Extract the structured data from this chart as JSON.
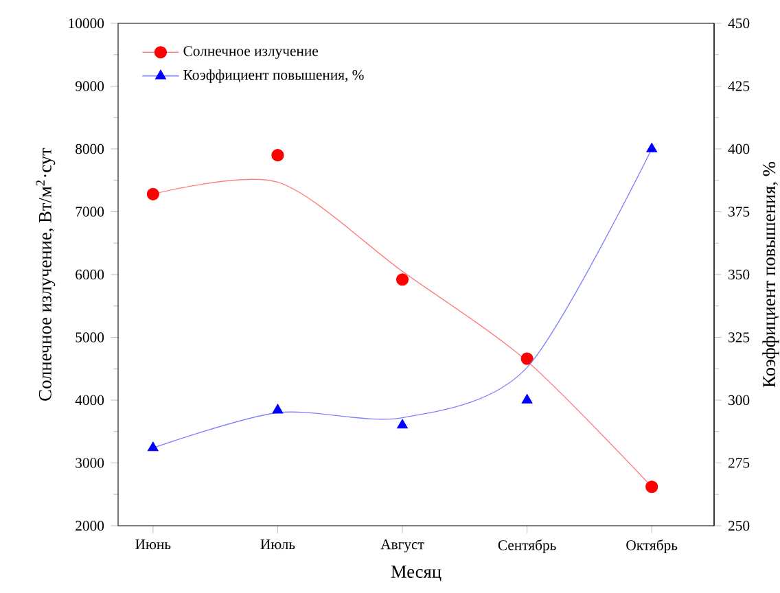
{
  "chart_data": {
    "type": "scatter",
    "xlabel": "Месяц",
    "ylabel": "Солнечное излучение, Вт/м$^{2}$·сут",
    "y2label": "Коэффициент повышения, %",
    "categories": [
      "Июнь",
      "Июль",
      "Август",
      "Сентябрь",
      "Октябрь"
    ],
    "ylim": [
      2000,
      10000
    ],
    "yticks": [
      2000,
      3000,
      4000,
      5000,
      6000,
      7000,
      8000,
      9000,
      10000
    ],
    "y2lim": [
      250,
      450
    ],
    "y2ticks": [
      250,
      275,
      300,
      325,
      350,
      375,
      400,
      425,
      450
    ],
    "legend": "top left",
    "series": [
      {
        "name": "Солнечное излучение",
        "marker": "circle",
        "color": "#ff0000",
        "values": [
          7280,
          7900,
          5920,
          4660,
          2620
        ]
      },
      {
        "name": "Коэффициент повышения, %",
        "marker": "triangle",
        "color": "#0000ff",
        "axis": "y2",
        "values": [
          281,
          296,
          290,
          300,
          400
        ]
      },
      {
        "type": "line",
        "color": "#ff8080",
        "values": [
          7280,
          7470,
          6050,
          4620,
          2620
        ]
      },
      {
        "type": "line",
        "color": "#8080ff",
        "axis": "y2",
        "values": [
          281,
          295,
          293,
          313,
          400
        ]
      }
    ]
  }
}
